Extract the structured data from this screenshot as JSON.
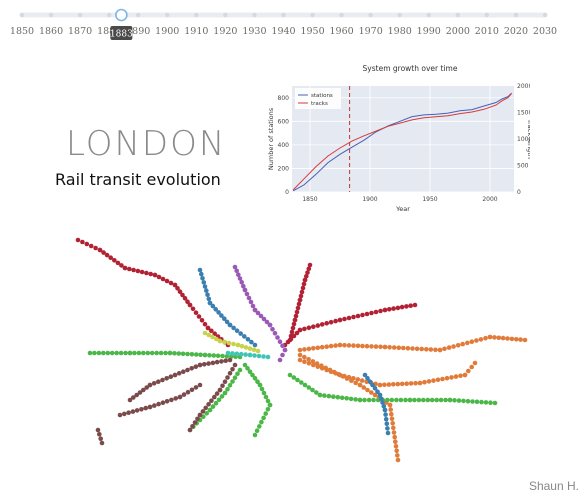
{
  "timeline": {
    "years": [
      "1850",
      "1860",
      "1870",
      "1880",
      "1890",
      "1900",
      "1910",
      "1920",
      "1930",
      "1940",
      "1950",
      "1960",
      "1970",
      "1980",
      "1990",
      "2000",
      "2010",
      "2020",
      "2030"
    ],
    "selected": "1883",
    "selected_fraction": 0.19,
    "track_color": "#e9ecf1",
    "handle_color": "#7fb6e6"
  },
  "header": {
    "city": "LONDON",
    "subtitle": "Rail transit evolution",
    "author": "Shaun H."
  },
  "chart_data": {
    "type": "line",
    "title": "System growth over time",
    "xlabel": "Year",
    "ylabel": "Number of stations",
    "y2label": "Track length",
    "xlim": [
      1835,
      2020
    ],
    "ylim": [
      0,
      900
    ],
    "y2lim": [
      0,
      2000
    ],
    "x_ticks": [
      1850,
      1900,
      1950,
      2000
    ],
    "y_ticks": [
      0,
      200,
      400,
      600,
      800
    ],
    "y2_ticks": [
      0,
      500,
      1000,
      1500,
      2000
    ],
    "marker_year": 1883,
    "legend": "top-left",
    "series": [
      {
        "name": "stations",
        "color": "#4a5fb5",
        "x": [
          1836,
          1845,
          1855,
          1865,
          1875,
          1885,
          1895,
          1905,
          1915,
          1925,
          1935,
          1945,
          1955,
          1965,
          1975,
          1985,
          1995,
          2005,
          2010,
          2015,
          2018
        ],
        "y": [
          10,
          60,
          150,
          250,
          320,
          380,
          440,
          510,
          560,
          600,
          640,
          655,
          660,
          670,
          690,
          700,
          730,
          760,
          790,
          810,
          840
        ]
      },
      {
        "name": "tracks",
        "color": "#d63b3b",
        "x": [
          1836,
          1845,
          1855,
          1865,
          1875,
          1885,
          1895,
          1905,
          1915,
          1925,
          1935,
          1945,
          1955,
          1965,
          1975,
          1985,
          1995,
          2005,
          2010,
          2015,
          2018
        ],
        "y": [
          40,
          250,
          480,
          680,
          830,
          960,
          1060,
          1150,
          1240,
          1300,
          1360,
          1400,
          1420,
          1440,
          1480,
          1510,
          1560,
          1640,
          1720,
          1780,
          1860
        ],
        "axis": "y2"
      }
    ]
  },
  "map": {
    "lines": [
      {
        "name": "red",
        "color": "#b22234"
      },
      {
        "name": "orange",
        "color": "#e07b39"
      },
      {
        "name": "green",
        "color": "#4bb749"
      },
      {
        "name": "brown",
        "color": "#7b4b4b"
      },
      {
        "name": "purple",
        "color": "#9b59b6"
      },
      {
        "name": "blue",
        "color": "#3b7fb0"
      },
      {
        "name": "teal",
        "color": "#3fc5b5"
      },
      {
        "name": "yellow",
        "color": "#c8d24a"
      }
    ]
  }
}
